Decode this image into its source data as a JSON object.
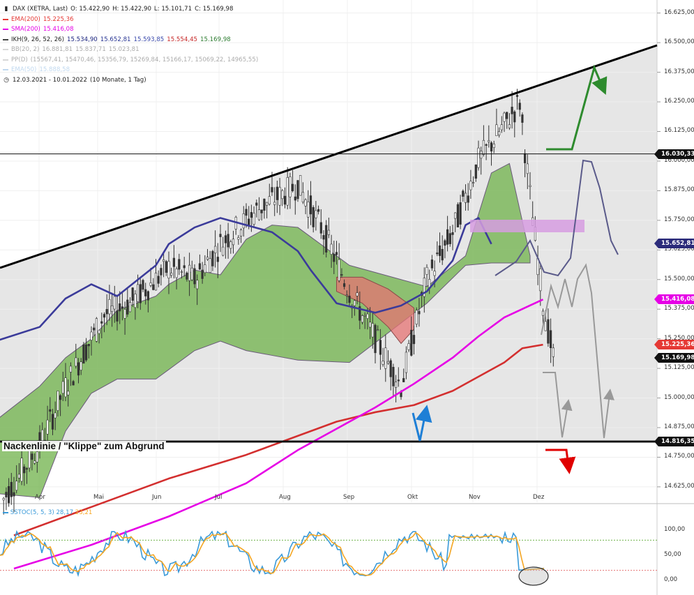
{
  "legend": {
    "main": {
      "icon": "candlestick-icon",
      "title": "DAX (XETRA, Last)",
      "o": "O: 15.422,90",
      "h": "H: 15.422,90",
      "l": "L: 15.101,71",
      "c": "C: 15.169,98"
    },
    "ema200": {
      "label": "EMA(200)",
      "value": "15.225,36",
      "color": "#e53935"
    },
    "sma200": {
      "label": "SMA(200)",
      "value": "15.416,08",
      "color": "#e600e6"
    },
    "ikh": {
      "label": "IKH(9, 26, 52, 26)",
      "v1": "15.534,90",
      "v2": "15.652,81",
      "v3": "15.593,85",
      "v4": "15.554,45",
      "v5": "15.169,98",
      "c1": "#1a237e",
      "c2": "#283593",
      "c3": "#c62828",
      "c4": "#2e7d32",
      "color": "#444444"
    },
    "bb": {
      "label": "BB(20, 2)",
      "v1": "16.881,81",
      "v2": "15.837,71",
      "v3": "15.023,81",
      "color": "#999999"
    },
    "pp": {
      "label": "PP(D)",
      "values": "(15567,41, 15470,46, 15356,79, 15269,84, 15166,17, 15069,22, 14965,55)",
      "color": "#999999"
    },
    "ema50": {
      "label": "EMA(50)",
      "value": "15.888,58",
      "color": "#5c9bd6"
    },
    "period": {
      "icon": "clock-icon",
      "text": "12.03.2021 - 10.01.2022",
      "extra": "(10 Monate, 1 Tag)"
    }
  },
  "stoch_legend": {
    "label": "SSTOC(5, 5, 3)",
    "k": "28,17",
    "d": "23,21",
    "color_k": "#3a9ad9",
    "color_d": "#f5a623"
  },
  "annotation": {
    "neckline": "Nackenlinie / \"Klippe\" zum Abgrund"
  },
  "price_badges": [
    {
      "text": "16.030,33",
      "bg": "#111111",
      "y": 16030.33
    },
    {
      "text": "15.652,81",
      "bg": "#2b2b7a",
      "y": 15652.81
    },
    {
      "text": "15.416,08",
      "bg": "#e600e6",
      "y": 15416.08
    },
    {
      "text": "15.225,36",
      "bg": "#e53935",
      "y": 15225.36
    },
    {
      "text": "15.169,98",
      "bg": "#111111",
      "y": 15169.98
    },
    {
      "text": "14.816,35",
      "bg": "#111111",
      "y": 14816.35
    }
  ],
  "colors": {
    "cloud_bull": "#6fb24a",
    "cloud_bear": "#e57373",
    "kijun": "#3b3b9a",
    "ema": "#d32f2f",
    "sma": "#e600e6",
    "trend": "#000000",
    "projection": "#999999",
    "box": "#d69ce0",
    "arrow_green": "#2e8b2e",
    "arrow_blue": "#1e7fd6",
    "arrow_red": "#e00000",
    "stoch_k": "#3a9ad9",
    "stoch_d": "#f5a623"
  },
  "chart_data": {
    "type": "candlestick",
    "title": "DAX (XETRA, Last)",
    "period": "12.03.2021 - 10.01.2022",
    "ylim": [
      14560,
      16680
    ],
    "y_ticks": [
      "16.625,00",
      "16.500,00",
      "16.375,00",
      "16.250,00",
      "16.125,00",
      "16.000,00",
      "15.875,00",
      "15.750,00",
      "15.625,00",
      "15.500,00",
      "15.375,00",
      "15.250,00",
      "15.125,00",
      "15.000,00",
      "14.875,00",
      "14.750,00",
      "14.625,00"
    ],
    "x_months": [
      "Apr",
      "Mai",
      "Jun",
      "Jul",
      "Aug",
      "Sep",
      "Okt",
      "Nov",
      "Dez"
    ],
    "last": {
      "open": 15422.9,
      "high": 15422.9,
      "low": 15101.71,
      "close": 15169.98
    },
    "levels": [
      {
        "name": "horizontal",
        "value": 16030.33
      },
      {
        "name": "neckline",
        "value": 14816.35
      }
    ],
    "indicators": {
      "ema200": [
        [
          0,
          14420
        ],
        [
          30,
          14540
        ],
        [
          60,
          14660
        ],
        [
          90,
          14760
        ],
        [
          110,
          14840
        ],
        [
          125,
          14900
        ],
        [
          140,
          14940
        ],
        [
          155,
          14970
        ],
        [
          170,
          15030
        ],
        [
          180,
          15090
        ],
        [
          190,
          15150
        ],
        [
          197,
          15210
        ],
        [
          205,
          15225
        ]
      ],
      "sma200": [
        [
          0,
          14280
        ],
        [
          30,
          14380
        ],
        [
          60,
          14500
        ],
        [
          90,
          14640
        ],
        [
          110,
          14780
        ],
        [
          125,
          14870
        ],
        [
          140,
          14960
        ],
        [
          155,
          15060
        ],
        [
          170,
          15170
        ],
        [
          180,
          15260
        ],
        [
          190,
          15340
        ],
        [
          205,
          15416
        ]
      ],
      "kijun": [
        [
          -50,
          14900
        ],
        [
          -30,
          15000
        ],
        [
          -20,
          15100
        ],
        [
          -10,
          15230
        ],
        [
          10,
          15300
        ],
        [
          20,
          15420
        ],
        [
          30,
          15480
        ],
        [
          40,
          15430
        ],
        [
          55,
          15560
        ],
        [
          60,
          15650
        ],
        [
          70,
          15720
        ],
        [
          80,
          15760
        ],
        [
          100,
          15700
        ],
        [
          110,
          15620
        ],
        [
          115,
          15540
        ],
        [
          125,
          15400
        ],
        [
          140,
          15360
        ],
        [
          150,
          15390
        ],
        [
          160,
          15450
        ],
        [
          170,
          15580
        ],
        [
          175,
          15730
        ],
        [
          180,
          15760
        ],
        [
          185,
          15650
        ]
      ],
      "cloud_bull_upper": [
        [
          -20,
          14530
        ],
        [
          -10,
          14880
        ],
        [
          10,
          15050
        ],
        [
          20,
          15170
        ],
        [
          30,
          15250
        ],
        [
          40,
          15370
        ],
        [
          55,
          15430
        ],
        [
          60,
          15480
        ],
        [
          70,
          15540
        ],
        [
          80,
          15520
        ],
        [
          90,
          15670
        ],
        [
          100,
          15730
        ],
        [
          110,
          15720
        ],
        [
          130,
          15560
        ],
        [
          160,
          15470
        ],
        [
          175,
          15600
        ],
        [
          185,
          15950
        ],
        [
          192,
          15990
        ],
        [
          200,
          15600
        ]
      ],
      "cloud_bull_lower": [
        [
          -20,
          14530
        ],
        [
          -10,
          14600
        ],
        [
          10,
          14580
        ],
        [
          20,
          14860
        ],
        [
          30,
          15020
        ],
        [
          40,
          15080
        ],
        [
          55,
          15080
        ],
        [
          60,
          15120
        ],
        [
          70,
          15200
        ],
        [
          80,
          15240
        ],
        [
          90,
          15200
        ],
        [
          100,
          15180
        ],
        [
          110,
          15160
        ],
        [
          130,
          15150
        ],
        [
          160,
          15400
        ],
        [
          175,
          15560
        ],
        [
          185,
          15570
        ],
        [
          200,
          15570
        ]
      ],
      "cloud_bear_upper": [
        [
          125,
          15510
        ],
        [
          135,
          15510
        ],
        [
          145,
          15460
        ],
        [
          150,
          15420
        ],
        [
          155,
          15380
        ]
      ],
      "cloud_bear_lower": [
        [
          125,
          15450
        ],
        [
          135,
          15400
        ],
        [
          145,
          15300
        ],
        [
          150,
          15230
        ],
        [
          155,
          15290
        ]
      ]
    }
  },
  "stoch_axis": {
    "ticks": [
      "100,00",
      "50,00",
      "0,00"
    ]
  }
}
